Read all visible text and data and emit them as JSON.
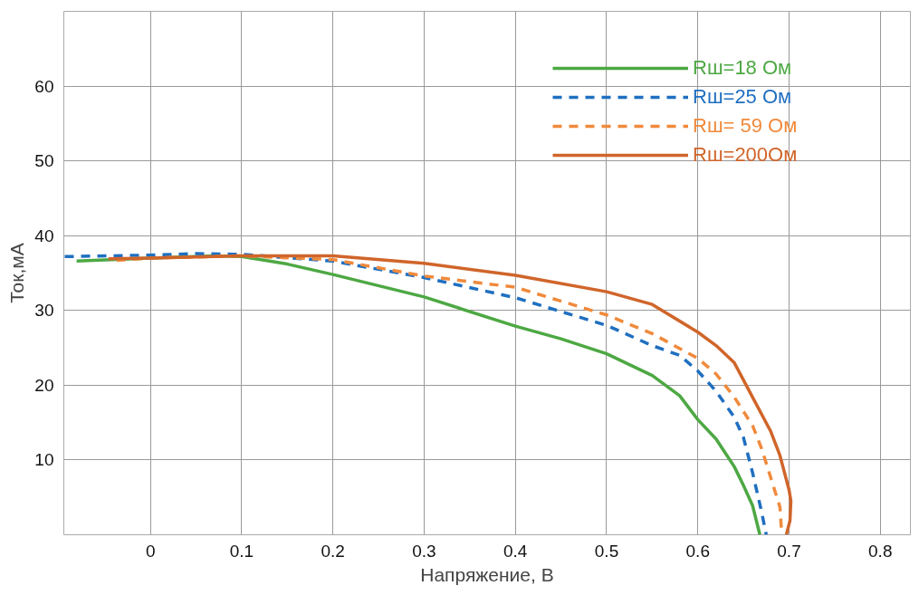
{
  "chart_data": {
    "type": "line",
    "xlabel": "Напряжение, В",
    "ylabel": "Ток,мА",
    "xlim": [
      -0.095,
      0.833
    ],
    "ylim": [
      0,
      70
    ],
    "xticks": [
      0,
      0.1,
      0.2,
      0.3,
      0.4,
      0.5,
      0.6,
      0.7,
      0.8
    ],
    "yticks": [
      10,
      20,
      30,
      40,
      50,
      60
    ],
    "grid": true,
    "legend": "top right",
    "series": [
      {
        "name": "Rш=18 Ом",
        "color": "#4da843",
        "line_style": "solid",
        "x": [
          -0.081,
          0,
          0.07,
          0.1,
          0.15,
          0.2,
          0.3,
          0.4,
          0.45,
          0.5,
          0.55,
          0.58,
          0.6,
          0.62,
          0.64,
          0.65,
          0.66,
          0.668
        ],
        "values": [
          36.6,
          37.0,
          37.3,
          37.2,
          36.2,
          34.8,
          31.8,
          27.9,
          26.2,
          24.2,
          21.3,
          18.6,
          15.4,
          12.8,
          9.1,
          6.6,
          3.9,
          0
        ]
      },
      {
        "name": "Rш=25 Ом",
        "color": "#1f6fc0",
        "line_style": "dashed",
        "x": [
          -0.094,
          0,
          0.05,
          0.1,
          0.2,
          0.3,
          0.4,
          0.5,
          0.55,
          0.58,
          0.6,
          0.62,
          0.64,
          0.65,
          0.66,
          0.67,
          0.675
        ],
        "values": [
          37.2,
          37.4,
          37.6,
          37.5,
          36.6,
          34.4,
          31.7,
          28.0,
          25.3,
          24.0,
          21.9,
          19.2,
          15.7,
          13.0,
          8.3,
          3.0,
          0
        ]
      },
      {
        "name": "Rш= 59 Ом",
        "color": "#f08a3c",
        "line_style": "dashed",
        "x": [
          -0.037,
          0,
          0.1,
          0.2,
          0.3,
          0.4,
          0.5,
          0.55,
          0.6,
          0.62,
          0.64,
          0.66,
          0.67,
          0.68,
          0.69,
          0.692
        ],
        "values": [
          36.7,
          37.0,
          37.3,
          36.8,
          34.6,
          33.1,
          29.4,
          26.9,
          23.6,
          21.5,
          18.4,
          14.6,
          11.5,
          7.6,
          3.7,
          0
        ]
      },
      {
        "name": "Rш=200Ом",
        "color": "#d0652a",
        "line_style": "solid",
        "x": [
          -0.046,
          0,
          0.1,
          0.2,
          0.3,
          0.4,
          0.5,
          0.55,
          0.6,
          0.62,
          0.64,
          0.66,
          0.68,
          0.69,
          0.7,
          0.702,
          0.701,
          0.697
        ],
        "values": [
          36.9,
          37.0,
          37.3,
          37.3,
          36.3,
          34.7,
          32.5,
          30.8,
          27.1,
          25.3,
          23.0,
          18.4,
          13.8,
          10.6,
          6.0,
          4.5,
          1.9,
          0
        ]
      }
    ]
  }
}
